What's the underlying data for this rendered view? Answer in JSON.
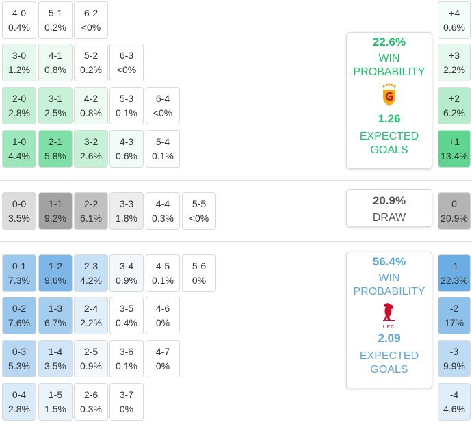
{
  "home": {
    "win_pct": "22.6%",
    "win_label_1": "WIN",
    "win_label_2": "PROBABILITY",
    "xg": "1.26",
    "xg_label_1": "EXPECTED",
    "xg_label_2": "GOALS",
    "team_logo": "galatasaray-crest-icon",
    "color": "#1cc26a"
  },
  "draw": {
    "pct": "20.9%",
    "label": "DRAW"
  },
  "away": {
    "win_pct": "56.4%",
    "win_label_1": "WIN",
    "win_label_2": "PROBABILITY",
    "xg": "2.09",
    "xg_label_1": "EXPECTED",
    "xg_label_2": "GOALS",
    "team_logo": "liverpool-crest-icon",
    "crest_text": "L.F.C.",
    "color": "#5fa6d6"
  },
  "home_scores": [
    [
      {
        "s": "4-0",
        "p": "0.4%"
      },
      {
        "s": "5-1",
        "p": "0.2%"
      },
      {
        "s": "6-2",
        "p": "<0%"
      }
    ],
    [
      {
        "s": "3-0",
        "p": "1.2%"
      },
      {
        "s": "4-1",
        "p": "0.8%"
      },
      {
        "s": "5-2",
        "p": "0.2%"
      },
      {
        "s": "6-3",
        "p": "<0%"
      }
    ],
    [
      {
        "s": "2-0",
        "p": "2.8%"
      },
      {
        "s": "3-1",
        "p": "2.5%"
      },
      {
        "s": "4-2",
        "p": "0.8%"
      },
      {
        "s": "5-3",
        "p": "0.1%"
      },
      {
        "s": "6-4",
        "p": "<0%"
      }
    ],
    [
      {
        "s": "1-0",
        "p": "4.4%"
      },
      {
        "s": "2-1",
        "p": "5.8%"
      },
      {
        "s": "3-2",
        "p": "2.6%"
      },
      {
        "s": "4-3",
        "p": "0.6%"
      },
      {
        "s": "5-4",
        "p": "0.1%"
      }
    ]
  ],
  "draw_scores": [
    [
      {
        "s": "0-0",
        "p": "3.5%"
      },
      {
        "s": "1-1",
        "p": "9.2%"
      },
      {
        "s": "2-2",
        "p": "6.1%"
      },
      {
        "s": "3-3",
        "p": "1.8%"
      },
      {
        "s": "4-4",
        "p": "0.3%"
      },
      {
        "s": "5-5",
        "p": "<0%"
      }
    ]
  ],
  "away_scores": [
    [
      {
        "s": "0-1",
        "p": "7.3%"
      },
      {
        "s": "1-2",
        "p": "9.6%"
      },
      {
        "s": "2-3",
        "p": "4.2%"
      },
      {
        "s": "3-4",
        "p": "0.9%"
      },
      {
        "s": "4-5",
        "p": "0.1%"
      },
      {
        "s": "5-6",
        "p": "0%"
      }
    ],
    [
      {
        "s": "0-2",
        "p": "7.6%"
      },
      {
        "s": "1-3",
        "p": "6.7%"
      },
      {
        "s": "2-4",
        "p": "2.2%"
      },
      {
        "s": "3-5",
        "p": "0.4%"
      },
      {
        "s": "4-6",
        "p": "0%"
      }
    ],
    [
      {
        "s": "0-3",
        "p": "5.3%"
      },
      {
        "s": "1-4",
        "p": "3.5%"
      },
      {
        "s": "2-5",
        "p": "0.9%"
      },
      {
        "s": "3-6",
        "p": "0.1%"
      },
      {
        "s": "4-7",
        "p": "0%"
      }
    ],
    [
      {
        "s": "0-4",
        "p": "2.8%"
      },
      {
        "s": "1-5",
        "p": "1.5%"
      },
      {
        "s": "2-6",
        "p": "0.3%"
      },
      {
        "s": "3-7",
        "p": "0%"
      }
    ]
  ],
  "margins_home": [
    {
      "m": "+4",
      "p": "0.6%"
    },
    {
      "m": "+3",
      "p": "2.2%"
    },
    {
      "m": "+2",
      "p": "6.2%"
    },
    {
      "m": "+1",
      "p": "13.4%"
    }
  ],
  "margin_draw": {
    "m": "0",
    "p": "20.9%"
  },
  "margins_away": [
    {
      "m": "-1",
      "p": "22.3%"
    },
    {
      "m": "-2",
      "p": "17%"
    },
    {
      "m": "-3",
      "p": "9.9%"
    },
    {
      "m": "-4",
      "p": "4.6%"
    }
  ]
}
